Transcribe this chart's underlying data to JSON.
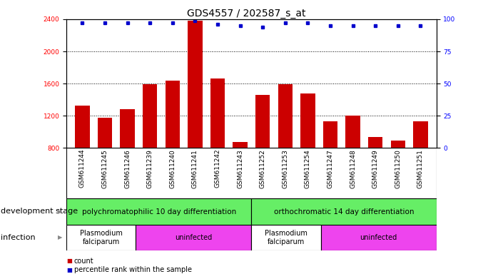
{
  "title": "GDS4557 / 202587_s_at",
  "samples": [
    "GSM611244",
    "GSM611245",
    "GSM611246",
    "GSM611239",
    "GSM611240",
    "GSM611241",
    "GSM611242",
    "GSM611243",
    "GSM611252",
    "GSM611253",
    "GSM611254",
    "GSM611247",
    "GSM611248",
    "GSM611249",
    "GSM611250",
    "GSM611251"
  ],
  "counts": [
    1330,
    1175,
    1285,
    1595,
    1640,
    2380,
    1660,
    875,
    1460,
    1590,
    1480,
    1130,
    1200,
    940,
    890,
    1130
  ],
  "percentile_ranks": [
    97,
    97,
    97,
    97,
    97,
    99,
    96,
    95,
    94,
    97,
    97,
    95,
    95,
    95,
    95,
    95
  ],
  "ylim_left": [
    800,
    2400
  ],
  "ylim_right": [
    0,
    100
  ],
  "yticks_left": [
    800,
    1200,
    1600,
    2000,
    2400
  ],
  "yticks_right": [
    0,
    25,
    50,
    75,
    100
  ],
  "bar_color": "#cc0000",
  "dot_color": "#0000cc",
  "background_color": "#ffffff",
  "plot_bg_color": "#ffffff",
  "label_bg_color": "#d8d8d8",
  "dev_stage_color": "#66ee66",
  "dev_stage_groups": [
    {
      "label": "polychromatophilic 10 day differentiation",
      "start": 0,
      "end": 7
    },
    {
      "label": "orthochromatic 14 day differentiation",
      "start": 8,
      "end": 15
    }
  ],
  "infection_groups": [
    {
      "label": "Plasmodium\nfalciparum",
      "start": 0,
      "end": 2,
      "color": "#ffffff"
    },
    {
      "label": "uninfected",
      "start": 3,
      "end": 7,
      "color": "#ee44ee"
    },
    {
      "label": "Plasmodium\nfalciparum",
      "start": 8,
      "end": 10,
      "color": "#ffffff"
    },
    {
      "label": "uninfected",
      "start": 11,
      "end": 15,
      "color": "#ee44ee"
    }
  ],
  "dev_stage_row_label": "development stage",
  "infection_row_label": "infection",
  "legend_count_label": "count",
  "legend_pct_label": "percentile rank within the sample",
  "grid_color": "#000000",
  "title_fontsize": 10,
  "tick_fontsize": 6.5,
  "label_fontsize": 8,
  "annotation_fontsize": 7.5
}
